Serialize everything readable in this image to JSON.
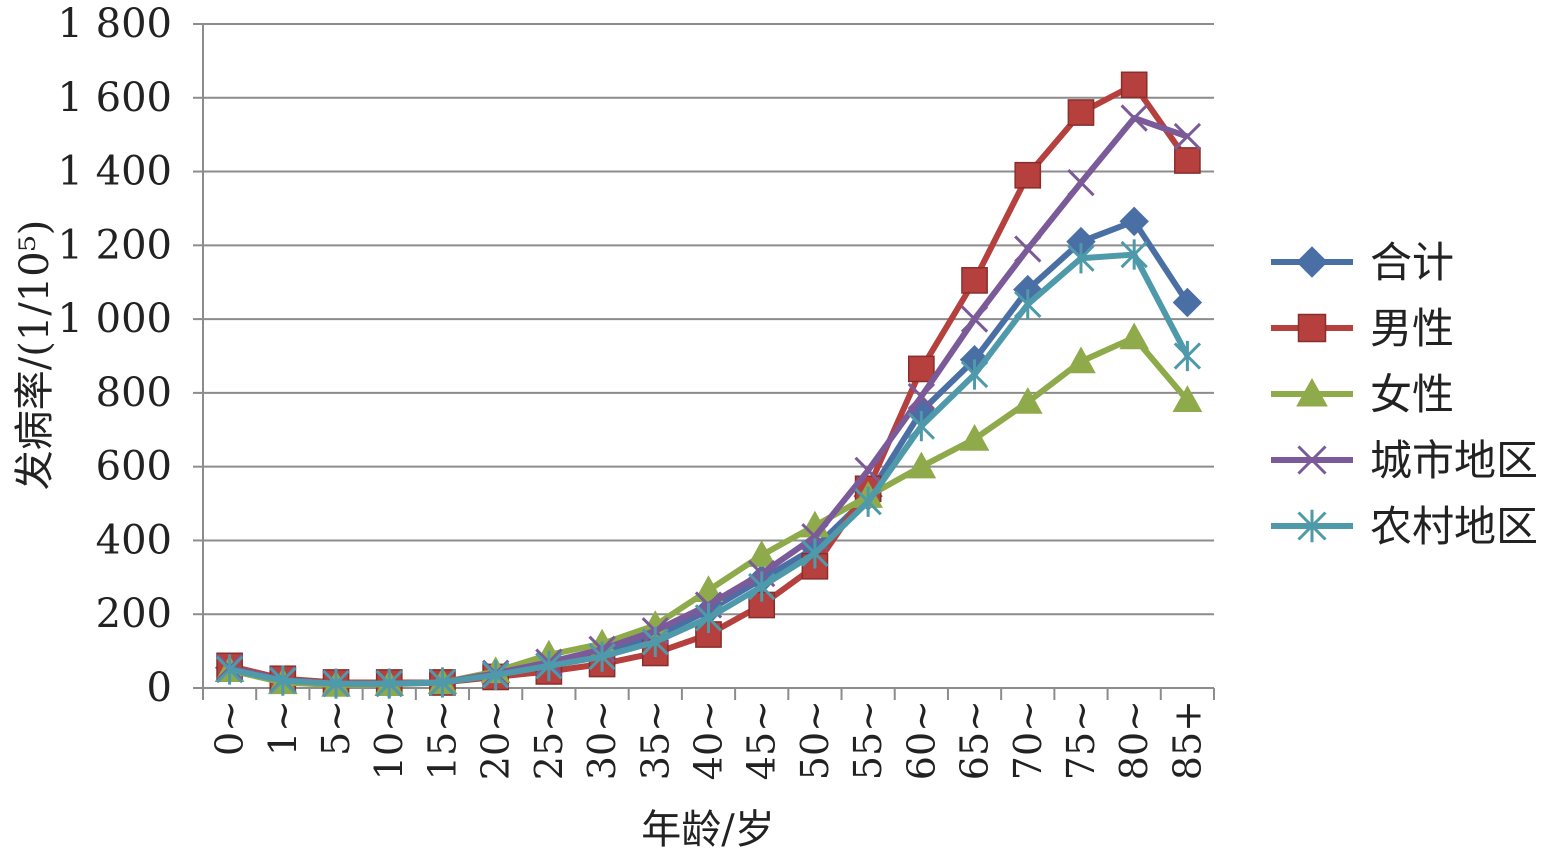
{
  "chart_data": {
    "type": "line",
    "xlabel": "年龄/岁",
    "ylabel": "发病率/(1/10⁵)",
    "ylim": [
      0,
      1800
    ],
    "yticks": [
      0,
      200,
      400,
      600,
      800,
      1000,
      1200,
      1400,
      1600,
      1800
    ],
    "ytick_labels": [
      "0",
      "200",
      "400",
      "600",
      "800",
      "1 000",
      "1 200",
      "1 400",
      "1 600",
      "1 800"
    ],
    "categories": [
      "0~",
      "1~",
      "5~",
      "10~",
      "15~",
      "20~",
      "25~",
      "30~",
      "35~",
      "40~",
      "45~",
      "50~",
      "55~",
      "60~",
      "65~",
      "70~",
      "75~",
      "80~",
      "85+"
    ],
    "grid": true,
    "legend_position": "right",
    "series": [
      {
        "name": "合计",
        "color": "#4a6fa5",
        "marker": "diamond",
        "values": [
          55,
          22,
          12,
          12,
          15,
          35,
          65,
          95,
          140,
          210,
          295,
          380,
          520,
          750,
          890,
          1080,
          1210,
          1265,
          1045
        ]
      },
      {
        "name": "男性",
        "color": "#b5403d",
        "marker": "square",
        "values": [
          60,
          25,
          15,
          15,
          15,
          30,
          45,
          65,
          95,
          145,
          225,
          330,
          540,
          865,
          1105,
          1390,
          1560,
          1635,
          1430
        ]
      },
      {
        "name": "女性",
        "color": "#8faa4a",
        "marker": "triangle",
        "values": [
          48,
          15,
          8,
          10,
          15,
          45,
          90,
          120,
          170,
          265,
          360,
          440,
          520,
          600,
          675,
          775,
          885,
          950,
          780
        ]
      },
      {
        "name": "城市地区",
        "color": "#7a5a99",
        "marker": "x",
        "values": [
          55,
          22,
          12,
          12,
          15,
          40,
          70,
          105,
          155,
          225,
          310,
          410,
          590,
          790,
          1000,
          1190,
          1370,
          1545,
          1495
        ]
      },
      {
        "name": "农村地区",
        "color": "#4f9aaa",
        "marker": "asterisk",
        "values": [
          50,
          20,
          12,
          12,
          15,
          35,
          60,
          85,
          125,
          190,
          275,
          365,
          505,
          710,
          850,
          1040,
          1165,
          1175,
          900
        ]
      }
    ]
  }
}
